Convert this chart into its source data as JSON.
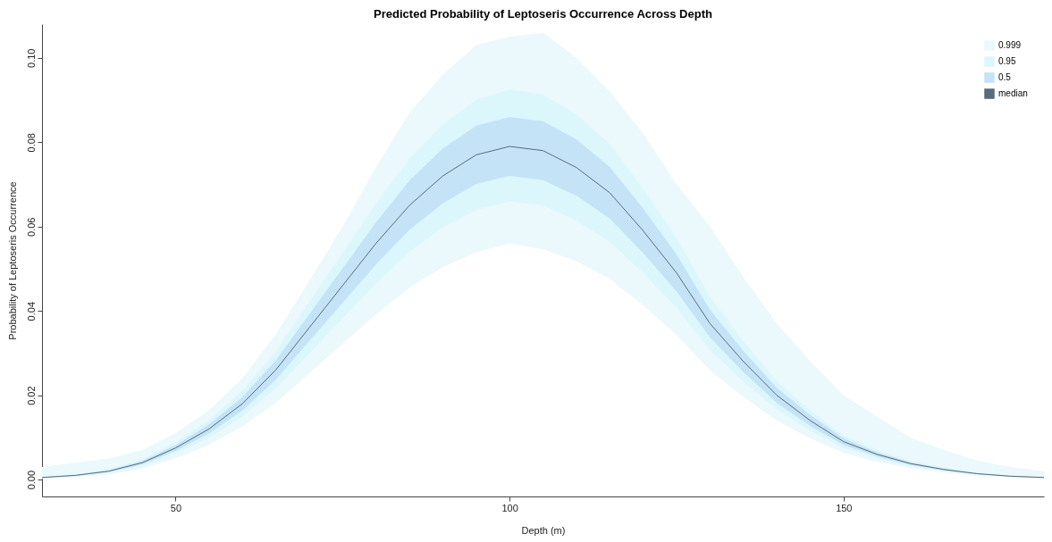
{
  "chart_data": {
    "type": "line",
    "title": "Predicted Probability of Leptoseris Occurrence Across Depth",
    "xlabel": "Depth (m)",
    "ylabel": "Probability of Leptoseris Occurrence",
    "x": [
      30,
      35,
      40,
      45,
      50,
      55,
      60,
      65,
      70,
      75,
      80,
      85,
      90,
      95,
      100,
      105,
      110,
      115,
      120,
      125,
      130,
      135,
      140,
      145,
      150,
      155,
      160,
      165,
      170,
      175,
      180
    ],
    "xlim": [
      30,
      180
    ],
    "xticks": [
      50,
      100,
      150
    ],
    "ylim": [
      -0.004,
      0.108
    ],
    "yticks": [
      {
        "value": 0,
        "label": "0.00"
      },
      {
        "value": 0.02,
        "label": "0.02"
      },
      {
        "value": 0.04,
        "label": "0.04"
      },
      {
        "value": 0.06,
        "label": "0.06"
      },
      {
        "value": 0.08,
        "label": "0.08"
      },
      {
        "value": 0.1,
        "label": "0.10"
      }
    ],
    "grid": false,
    "legend": "top right",
    "series": [
      {
        "name": "0.999",
        "type": "area",
        "color": "#ebf8fc",
        "values": [
          null,
          null,
          null,
          null,
          null,
          null,
          null,
          null,
          null,
          null,
          null,
          null,
          null,
          null,
          null,
          null,
          null,
          null,
          null,
          null,
          null,
          null,
          null,
          null,
          null,
          null,
          null,
          null,
          null,
          null,
          null
        ],
        "lower": [
          0.0002,
          0.0006,
          0.0012,
          0.0026,
          0.005,
          0.0083,
          0.0126,
          0.0182,
          0.0252,
          0.0322,
          0.0392,
          0.0455,
          0.0504,
          0.0539,
          0.056,
          0.0546,
          0.0518,
          0.0476,
          0.0413,
          0.0343,
          0.0259,
          0.0196,
          0.014,
          0.0098,
          0.0063,
          0.0042,
          0.0027,
          0.0017,
          0.001,
          0.0005,
          0.0003
        ],
        "upper": [
          0.003,
          0.004,
          0.005,
          0.007,
          0.011,
          0.0165,
          0.024,
          0.0345,
          0.047,
          0.06,
          0.074,
          0.087,
          0.096,
          0.103,
          0.105,
          0.106,
          0.1,
          0.092,
          0.082,
          0.07,
          0.06,
          0.048,
          0.037,
          0.028,
          0.02,
          0.015,
          0.01,
          0.007,
          0.0045,
          0.003,
          0.002
        ]
      },
      {
        "name": "0.95",
        "type": "area",
        "color": "#dcf7fc",
        "values": [
          null,
          null,
          null,
          null,
          null,
          null,
          null,
          null,
          null,
          null,
          null,
          null,
          null,
          null,
          null,
          null,
          null,
          null,
          null,
          null,
          null,
          null,
          null,
          null,
          null,
          null,
          null,
          null,
          null,
          null,
          null
        ],
        "lower": [
          0.0004,
          0.0008,
          0.0016,
          0.0032,
          0.0062,
          0.01,
          0.0149,
          0.0216,
          0.0299,
          0.0382,
          0.0465,
          0.054,
          0.0598,
          0.0639,
          0.066,
          0.065,
          0.0614,
          0.0564,
          0.049,
          0.0407,
          0.0307,
          0.0232,
          0.0166,
          0.0116,
          0.0075,
          0.005,
          0.0032,
          0.002,
          0.0012,
          0.0007,
          0.0004
        ],
        "upper": [
          0.0007,
          0.0013,
          0.0025,
          0.0048,
          0.0089,
          0.0141,
          0.0211,
          0.0304,
          0.0421,
          0.0538,
          0.0655,
          0.0761,
          0.0842,
          0.0901,
          0.0925,
          0.0913,
          0.0866,
          0.0796,
          0.069,
          0.0573,
          0.0433,
          0.0328,
          0.0234,
          0.0164,
          0.0105,
          0.007,
          0.0044,
          0.0028,
          0.0016,
          0.001,
          0.0006
        ]
      },
      {
        "name": "0.5",
        "type": "area",
        "color": "#c4e3f7",
        "values": [
          null,
          null,
          null,
          null,
          null,
          null,
          null,
          null,
          null,
          null,
          null,
          null,
          null,
          null,
          null,
          null,
          null,
          null,
          null,
          null,
          null,
          null,
          null,
          null,
          null,
          null,
          null,
          null,
          null,
          null,
          null
        ],
        "lower": [
          0.0004,
          0.0009,
          0.0018,
          0.0036,
          0.0068,
          0.0109,
          0.0164,
          0.0237,
          0.0328,
          0.0419,
          0.051,
          0.0592,
          0.0655,
          0.0701,
          0.072,
          0.071,
          0.0673,
          0.0619,
          0.0537,
          0.0446,
          0.0337,
          0.0255,
          0.0182,
          0.0127,
          0.0082,
          0.0055,
          0.0035,
          0.0022,
          0.0013,
          0.0007,
          0.0004
        ],
        "upper": [
          0.0006,
          0.0011,
          0.0022,
          0.0044,
          0.0082,
          0.0131,
          0.0196,
          0.0283,
          0.0392,
          0.0501,
          0.061,
          0.0709,
          0.0785,
          0.0839,
          0.086,
          0.085,
          0.0807,
          0.0741,
          0.0643,
          0.0534,
          0.0403,
          0.0305,
          0.0218,
          0.0153,
          0.0098,
          0.0065,
          0.0041,
          0.0026,
          0.0015,
          0.0009,
          0.0006
        ]
      },
      {
        "name": "median",
        "type": "line",
        "color": "#5a6b7a",
        "values": [
          0.0005,
          0.001,
          0.002,
          0.004,
          0.0075,
          0.012,
          0.018,
          0.026,
          0.036,
          0.046,
          0.056,
          0.065,
          0.072,
          0.077,
          0.079,
          0.078,
          0.074,
          0.068,
          0.059,
          0.049,
          0.037,
          0.028,
          0.02,
          0.014,
          0.009,
          0.006,
          0.0038,
          0.0024,
          0.0014,
          0.0008,
          0.0005
        ]
      }
    ]
  }
}
